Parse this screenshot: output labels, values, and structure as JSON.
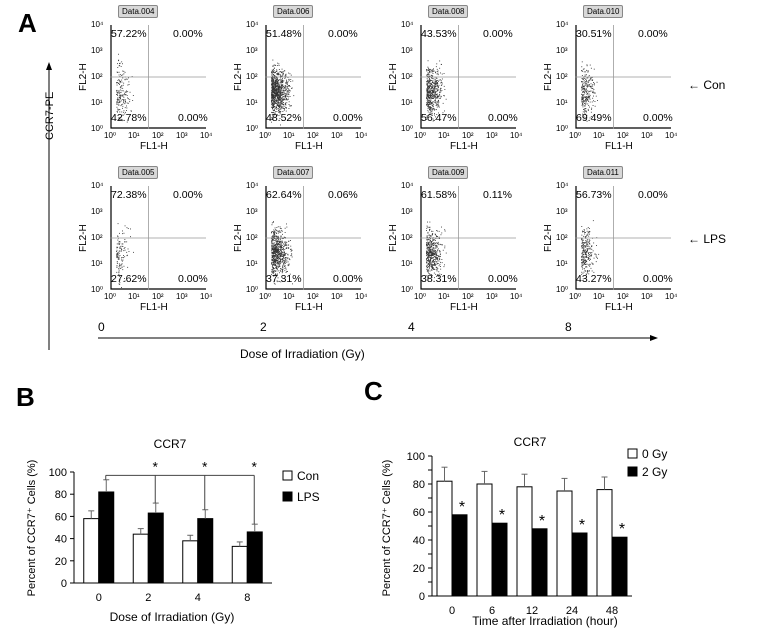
{
  "panel_a": {
    "letter": "A",
    "y_label": "CCR7-PE",
    "x_label": "Dose of Irradiation (Gy)",
    "fl2": "FL2-H",
    "fl1": "FL1-H",
    "y_ticks": [
      "10⁴",
      "10³",
      "10²",
      "10¹",
      "10⁰"
    ],
    "x_ticks": [
      "10⁰",
      "10¹",
      "10²",
      "10³",
      "10⁴"
    ],
    "doses": [
      "0",
      "2",
      "4",
      "8"
    ],
    "rows": [
      {
        "label": "Con",
        "plots": [
          {
            "tag": "Data.004",
            "ul": "57.22%",
            "ur": "0.00%",
            "ll": "42.78%",
            "lr": "0.00%"
          },
          {
            "tag": "Data.006",
            "ul": "51.48%",
            "ur": "0.00%",
            "ll": "48.52%",
            "lr": "0.00%"
          },
          {
            "tag": "Data.008",
            "ul": "43.53%",
            "ur": "0.00%",
            "ll": "56.47%",
            "lr": "0.00%"
          },
          {
            "tag": "Data.010",
            "ul": "30.51%",
            "ur": "0.00%",
            "ll": "69.49%",
            "lr": "0.00%"
          }
        ]
      },
      {
        "label": "LPS",
        "plots": [
          {
            "tag": "Data.005",
            "ul": "72.38%",
            "ur": "0.00%",
            "ll": "27.62%",
            "lr": "0.00%"
          },
          {
            "tag": "Data.007",
            "ul": "62.64%",
            "ur": "0.06%",
            "ll": "37.31%",
            "lr": "0.00%"
          },
          {
            "tag": "Data.009",
            "ul": "61.58%",
            "ur": "0.11%",
            "ll": "38.31%",
            "lr": "0.00%"
          },
          {
            "tag": "Data.011",
            "ul": "56.73%",
            "ur": "0.00%",
            "ll": "43.27%",
            "lr": "0.00%"
          }
        ]
      }
    ]
  },
  "panel_b": {
    "letter": "B"
  },
  "panel_c": {
    "letter": "C"
  },
  "chart_data": [
    {
      "type": "bar",
      "title": "CCR7",
      "xlabel": "Dose of Irradiation (Gy)",
      "ylabel": "Percent of CCR7⁺ Cells (%)",
      "categories": [
        "0",
        "2",
        "4",
        "8"
      ],
      "ylim": [
        0,
        100
      ],
      "yticks": [
        0,
        20,
        40,
        60,
        80,
        100
      ],
      "series": [
        {
          "name": "Con",
          "color": "#ffffff",
          "values": [
            58,
            44,
            38,
            33
          ],
          "errors": [
            7,
            5,
            5,
            4
          ]
        },
        {
          "name": "LPS",
          "color": "#000000",
          "values": [
            82,
            63,
            58,
            46
          ],
          "errors": [
            11,
            9,
            8,
            7
          ]
        }
      ],
      "significance": [
        {
          "category": "2",
          "label": "*"
        },
        {
          "category": "4",
          "label": "*"
        },
        {
          "category": "8",
          "label": "*"
        }
      ],
      "legend": "right"
    },
    {
      "type": "bar",
      "title": "CCR7",
      "xlabel": "Time after Irradiation (hour)",
      "ylabel": "Percent of CCR7⁺ Cells (%)",
      "categories": [
        "0",
        "6",
        "12",
        "24",
        "48"
      ],
      "ylim": [
        0,
        100
      ],
      "yticks": [
        0,
        10,
        20,
        30,
        40,
        50,
        60,
        70,
        80,
        90,
        100
      ],
      "series": [
        {
          "name": "0 Gy",
          "color": "#ffffff",
          "values": [
            82,
            80,
            78,
            75,
            76
          ],
          "errors": [
            10,
            9,
            9,
            9,
            9
          ]
        },
        {
          "name": "2 Gy",
          "color": "#000000",
          "values": [
            58,
            52,
            48,
            45,
            42
          ],
          "errors": [
            0,
            0,
            0,
            0,
            0
          ]
        }
      ],
      "significance_label": "*",
      "legend": "top-right"
    }
  ]
}
